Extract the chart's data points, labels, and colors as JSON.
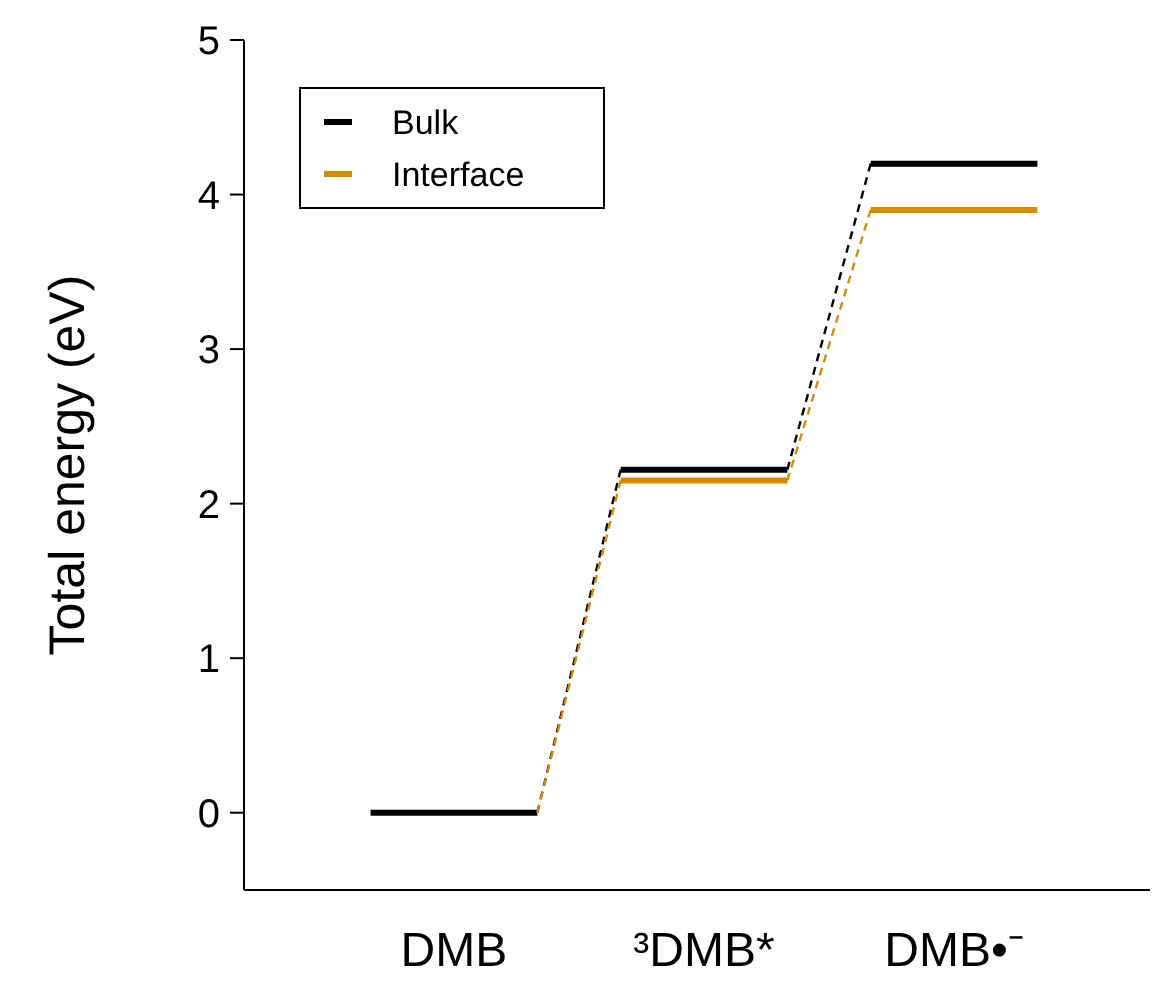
{
  "chart_data": {
    "type": "line",
    "ylabel": "Total energy (eV)",
    "categories": [
      null,
      "DMB",
      null,
      null,
      "³DMB*",
      null,
      null,
      "DMB•⁻",
      null
    ],
    "series": [
      {
        "name": "Bulk",
        "color": "#000000",
        "line_style": "solid",
        "values": [
          0,
          0,
          0,
          null,
          null,
          null,
          null,
          null,
          null
        ]
      },
      {
        "name": "Interface",
        "color": "#d98c00",
        "line_style": "solid",
        "values": [
          null,
          null,
          null,
          2.15,
          2.15,
          2.15,
          null,
          null,
          null
        ]
      },
      {
        "color": "#000000",
        "line_style": "solid",
        "values": [
          null,
          null,
          null,
          2.22,
          2.22,
          2.22,
          null,
          null,
          null
        ]
      },
      {
        "color": "#000000",
        "line_style": "solid",
        "values": [
          null,
          null,
          null,
          null,
          null,
          null,
          4.2,
          4.2,
          4.2
        ]
      },
      {
        "color": "#d98c00",
        "line_style": "solid",
        "values": [
          null,
          null,
          null,
          null,
          null,
          null,
          3.9,
          3.9,
          3.9
        ]
      },
      {
        "color": "#000000",
        "line_style": "dashed",
        "values": [
          null,
          null,
          0,
          2.22,
          null,
          null,
          null,
          null,
          null
        ]
      },
      {
        "color": "#000000",
        "line_style": "dashed",
        "values": [
          null,
          null,
          null,
          null,
          null,
          2.22,
          4.2,
          null,
          null
        ]
      },
      {
        "color": "#d98c00",
        "line_style": "dashed",
        "values": [
          null,
          null,
          0,
          2.15,
          null,
          null,
          null,
          null,
          null
        ]
      },
      {
        "color": "#d98c00",
        "line_style": "dashed",
        "values": [
          null,
          null,
          null,
          null,
          null,
          2.15,
          3.9,
          null,
          null
        ]
      }
    ],
    "ylim": [
      -0.5,
      5
    ],
    "yticks": [
      0,
      1,
      2,
      3,
      4,
      5
    ],
    "legend": "top left",
    "grid": false
  }
}
